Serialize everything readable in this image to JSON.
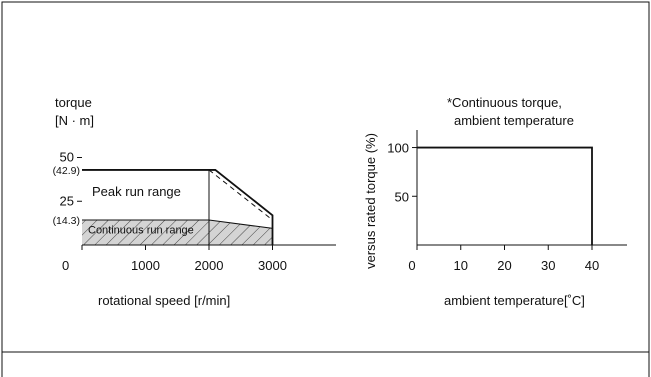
{
  "chart_data": [
    {
      "type": "area",
      "ylabel_line1": "torque",
      "ylabel_line2": "[N · m]",
      "xlabel": "rotational speed [r/min]",
      "x_ticks": [
        "0",
        "1000",
        "2000",
        "3000"
      ],
      "x_tick_values": [
        0,
        1000,
        2000,
        3000
      ],
      "y_ticks": [
        "50",
        "25"
      ],
      "y_tick_values": [
        50,
        25
      ],
      "y_annotations": [
        "(42.9)",
        "(14.3)"
      ],
      "y_annotation_values": [
        42.9,
        14.3
      ],
      "xlim": [
        0,
        4000
      ],
      "ylim": [
        0,
        60
      ],
      "series": [
        {
          "name": "Peak run range",
          "style": "solid",
          "x": [
            0,
            2000,
            2100,
            3000,
            3000
          ],
          "y": [
            42.9,
            42.9,
            42.9,
            17.0,
            0
          ]
        },
        {
          "name": "Continuous run range",
          "style": "hatched",
          "x": [
            0,
            2000,
            3000,
            3000
          ],
          "y": [
            14.3,
            14.3,
            9.5,
            0
          ]
        },
        {
          "name": "",
          "style": "dashed",
          "x": [
            2000,
            3000
          ],
          "y": [
            42.9,
            14.3
          ]
        }
      ]
    },
    {
      "type": "line",
      "title_line1": "*Continuous torque,",
      "title_line2": "ambient temperature",
      "ylabel": "versus rated torque (%)",
      "xlabel": "ambient temperature[˚C]",
      "x_ticks": [
        "0",
        "10",
        "20",
        "30",
        "40"
      ],
      "x_tick_values": [
        0,
        10,
        20,
        30,
        40
      ],
      "y_ticks": [
        "100",
        "50"
      ],
      "y_tick_values": [
        100,
        50
      ],
      "xlim": [
        0,
        48
      ],
      "ylim": [
        0,
        118
      ],
      "series": [
        {
          "x": [
            0,
            40,
            40
          ],
          "y": [
            100,
            100,
            0
          ]
        }
      ]
    }
  ]
}
